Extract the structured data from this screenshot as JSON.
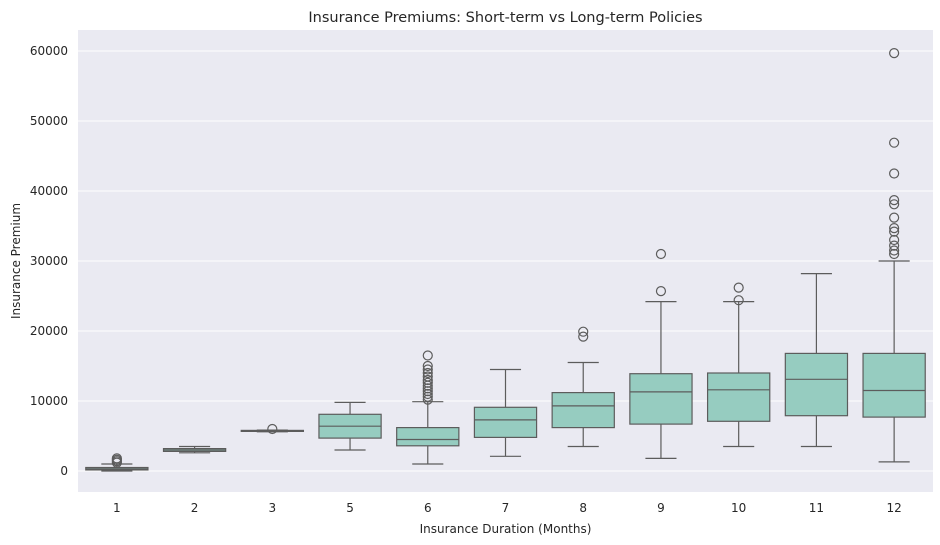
{
  "chart_data": {
    "type": "box",
    "title": "Insurance Premiums: Short-term vs Long-term Policies",
    "xlabel": "Insurance Duration (Months)",
    "ylabel": "Insurance Premium",
    "ylim": [
      -3000,
      63000
    ],
    "yticks": [
      0,
      10000,
      20000,
      30000,
      40000,
      50000,
      60000
    ],
    "grid": true,
    "categories": [
      "1",
      "2",
      "3",
      "5",
      "6",
      "7",
      "8",
      "9",
      "10",
      "11",
      "12"
    ],
    "boxes": [
      {
        "category": "1",
        "whisker_low": 0,
        "q1": 150,
        "median": 300,
        "q3": 500,
        "whisker_high": 1000,
        "outliers": [
          1200,
          1400,
          1600,
          1800
        ]
      },
      {
        "category": "2",
        "whisker_low": 2600,
        "q1": 2800,
        "median": 3000,
        "q3": 3200,
        "whisker_high": 3500,
        "outliers": []
      },
      {
        "category": "3",
        "whisker_low": 5600,
        "q1": 5700,
        "median": 5750,
        "q3": 5800,
        "whisker_high": 5850,
        "outliers": [
          6000
        ]
      },
      {
        "category": "5",
        "whisker_low": 3000,
        "q1": 4700,
        "median": 6400,
        "q3": 8100,
        "whisker_high": 9800,
        "outliers": []
      },
      {
        "category": "6",
        "whisker_low": 1000,
        "q1": 3600,
        "median": 4500,
        "q3": 6200,
        "whisker_high": 9900,
        "outliers": [
          10200,
          10600,
          11000,
          11400,
          11800,
          12200,
          12600,
          13000,
          13500,
          14000,
          14500,
          15000,
          16500
        ]
      },
      {
        "category": "7",
        "whisker_low": 2100,
        "q1": 4800,
        "median": 7300,
        "q3": 9100,
        "whisker_high": 14500,
        "outliers": []
      },
      {
        "category": "8",
        "whisker_low": 3500,
        "q1": 6200,
        "median": 9300,
        "q3": 11200,
        "whisker_high": 15500,
        "outliers": [
          19200,
          19900
        ]
      },
      {
        "category": "9",
        "whisker_low": 1800,
        "q1": 6700,
        "median": 11300,
        "q3": 13900,
        "whisker_high": 24200,
        "outliers": [
          25700,
          31000
        ]
      },
      {
        "category": "10",
        "whisker_low": 3500,
        "q1": 7100,
        "median": 11600,
        "q3": 14000,
        "whisker_high": 24200,
        "outliers": [
          24400,
          26200
        ]
      },
      {
        "category": "11",
        "whisker_low": 3500,
        "q1": 7900,
        "median": 13100,
        "q3": 16800,
        "whisker_high": 28200,
        "outliers": []
      },
      {
        "category": "12",
        "whisker_low": 1300,
        "q1": 7700,
        "median": 11500,
        "q3": 16800,
        "whisker_high": 30000,
        "outliers": [
          31000,
          31500,
          32200,
          33000,
          34200,
          34700,
          36200,
          38100,
          38700,
          42500,
          46900,
          59700
        ]
      }
    ]
  }
}
